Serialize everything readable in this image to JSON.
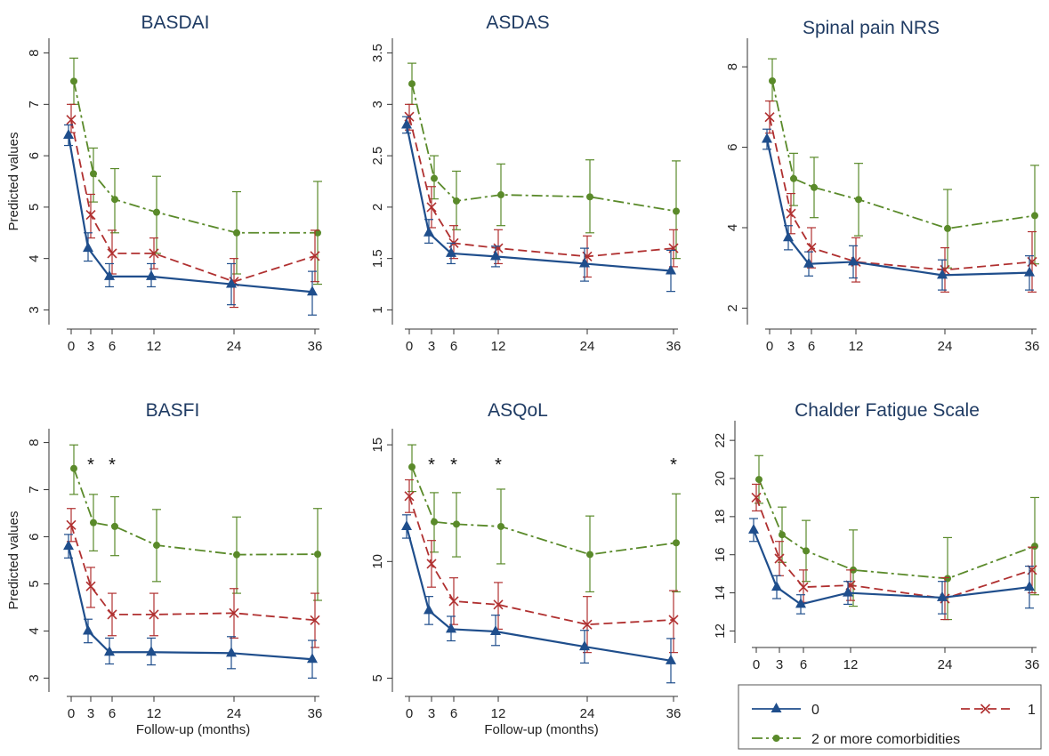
{
  "colors": {
    "series0": "#1f4e8c",
    "series1": "#b03030",
    "series2": "#5a8a2a",
    "axis": "#333333",
    "title": "#1f3b63"
  },
  "legend": {
    "placement": "bottom-right",
    "labels": [
      "0",
      "1",
      "2 or more comorbidities"
    ]
  },
  "chart_data": [
    {
      "type": "line",
      "title": "BASDAI",
      "ylabel": "Predicted values",
      "xlabel": "",
      "x": [
        0,
        3,
        6,
        12,
        24,
        36
      ],
      "ylim": [
        2.8,
        8.2
      ],
      "yticks": [
        3,
        4,
        5,
        6,
        7,
        8
      ],
      "stars": [],
      "series": [
        {
          "name": "0",
          "values": [
            6.4,
            4.2,
            3.65,
            3.65,
            3.5,
            3.35
          ],
          "lo": [
            6.2,
            3.95,
            3.45,
            3.45,
            3.1,
            2.9
          ],
          "hi": [
            6.6,
            4.5,
            3.9,
            3.9,
            3.9,
            3.75
          ]
        },
        {
          "name": "1",
          "values": [
            6.7,
            4.85,
            4.1,
            4.1,
            3.55,
            4.05
          ],
          "lo": [
            6.45,
            4.4,
            3.7,
            3.8,
            3.05,
            3.55
          ],
          "hi": [
            7.0,
            5.25,
            4.55,
            4.4,
            4.0,
            4.55
          ]
        },
        {
          "name": "2 or more comorbidities",
          "values": [
            7.45,
            5.65,
            5.15,
            4.9,
            4.5,
            4.5
          ],
          "lo": [
            7.0,
            5.1,
            4.5,
            4.1,
            3.7,
            3.5
          ],
          "hi": [
            7.9,
            6.15,
            5.75,
            5.6,
            5.3,
            5.5
          ]
        }
      ]
    },
    {
      "type": "line",
      "title": "ASDAS",
      "ylabel": "",
      "xlabel": "",
      "x": [
        0,
        3,
        6,
        12,
        24,
        36
      ],
      "ylim": [
        0.9,
        3.6
      ],
      "yticks": [
        1,
        1.5,
        2,
        2.5,
        3,
        3.5
      ],
      "stars": [],
      "series": [
        {
          "name": "0",
          "values": [
            2.8,
            1.75,
            1.55,
            1.52,
            1.45,
            1.38
          ],
          "lo": [
            2.72,
            1.65,
            1.45,
            1.42,
            1.28,
            1.18
          ],
          "hi": [
            2.88,
            1.88,
            1.65,
            1.62,
            1.6,
            1.58
          ]
        },
        {
          "name": "1",
          "values": [
            2.88,
            2.0,
            1.65,
            1.6,
            1.52,
            1.6
          ],
          "lo": [
            2.75,
            1.8,
            1.5,
            1.45,
            1.32,
            1.42
          ],
          "hi": [
            3.0,
            2.2,
            1.82,
            1.78,
            1.72,
            1.78
          ]
        },
        {
          "name": "2 or more comorbidities",
          "values": [
            3.2,
            2.28,
            2.06,
            2.12,
            2.1,
            1.96
          ],
          "lo": [
            3.0,
            2.08,
            1.78,
            1.82,
            1.75,
            1.5
          ],
          "hi": [
            3.4,
            2.5,
            2.35,
            2.42,
            2.46,
            2.45
          ]
        }
      ]
    },
    {
      "type": "line",
      "title": "Spinal pain NRS",
      "ylabel": "",
      "xlabel": "",
      "x": [
        0,
        3,
        6,
        12,
        24,
        36
      ],
      "ylim": [
        1.7,
        8.6
      ],
      "yticks": [
        2,
        4,
        6,
        8
      ],
      "stars": [],
      "series": [
        {
          "name": "0",
          "values": [
            6.2,
            3.75,
            3.1,
            3.15,
            2.82,
            2.88
          ],
          "lo": [
            5.95,
            3.45,
            2.8,
            2.75,
            2.45,
            2.45
          ],
          "hi": [
            6.45,
            4.05,
            3.4,
            3.55,
            3.2,
            3.3
          ]
        },
        {
          "name": "1",
          "values": [
            6.75,
            4.35,
            3.5,
            3.15,
            2.95,
            3.15
          ],
          "lo": [
            6.35,
            3.85,
            3.0,
            2.65,
            2.4,
            2.4
          ],
          "hi": [
            7.15,
            4.85,
            4.0,
            3.75,
            3.5,
            3.9
          ]
        },
        {
          "name": "2 or more comorbidities",
          "values": [
            7.65,
            5.22,
            5.0,
            4.7,
            3.98,
            4.3
          ],
          "lo": [
            7.15,
            4.55,
            4.25,
            3.8,
            3.0,
            3.1
          ],
          "hi": [
            8.2,
            5.85,
            5.75,
            5.6,
            4.95,
            5.55
          ]
        }
      ]
    },
    {
      "type": "line",
      "title": "BASFI",
      "ylabel": "Predicted values",
      "xlabel": "Follow-up (months)",
      "x": [
        0,
        3,
        6,
        12,
        24,
        36
      ],
      "ylim": [
        2.8,
        8.2
      ],
      "yticks": [
        3,
        4,
        5,
        6,
        7,
        8
      ],
      "stars": [
        3,
        6
      ],
      "series": [
        {
          "name": "0",
          "values": [
            5.8,
            4.0,
            3.55,
            3.55,
            3.53,
            3.4
          ],
          "lo": [
            5.55,
            3.75,
            3.3,
            3.28,
            3.2,
            3.0
          ],
          "hi": [
            6.05,
            4.25,
            3.85,
            3.85,
            3.88,
            3.8
          ]
        },
        {
          "name": "1",
          "values": [
            6.25,
            4.95,
            4.35,
            4.35,
            4.38,
            4.23
          ],
          "lo": [
            5.9,
            4.5,
            3.9,
            3.9,
            3.85,
            3.65
          ],
          "hi": [
            6.6,
            5.35,
            4.8,
            4.8,
            4.9,
            4.8
          ]
        },
        {
          "name": "2 or more comorbidities",
          "values": [
            7.45,
            6.3,
            6.22,
            5.82,
            5.62,
            5.63
          ],
          "lo": [
            6.9,
            5.7,
            5.6,
            5.05,
            4.8,
            4.65
          ],
          "hi": [
            7.95,
            6.9,
            6.85,
            6.58,
            6.42,
            6.6
          ]
        }
      ]
    },
    {
      "type": "line",
      "title": "ASQoL",
      "ylabel": "",
      "xlabel": "Follow-up (months)",
      "x": [
        0,
        3,
        6,
        12,
        24,
        36
      ],
      "ylim": [
        4.6,
        15.5
      ],
      "yticks": [
        5,
        10,
        15
      ],
      "stars": [
        3,
        6,
        12,
        36
      ],
      "series": [
        {
          "name": "0",
          "values": [
            11.5,
            7.9,
            7.1,
            7.0,
            6.35,
            5.75
          ],
          "lo": [
            11.0,
            7.3,
            6.6,
            6.4,
            5.65,
            4.8
          ],
          "hi": [
            12.0,
            8.5,
            7.65,
            7.7,
            7.05,
            6.7
          ]
        },
        {
          "name": "1",
          "values": [
            12.8,
            9.9,
            8.3,
            8.15,
            7.3,
            7.5
          ],
          "lo": [
            12.1,
            8.9,
            7.3,
            7.1,
            6.1,
            6.1
          ],
          "hi": [
            13.5,
            10.9,
            9.3,
            9.1,
            8.5,
            8.75
          ]
        },
        {
          "name": "2 or more comorbidities",
          "values": [
            14.05,
            11.7,
            11.6,
            11.5,
            10.3,
            10.8
          ],
          "lo": [
            13.0,
            10.4,
            10.2,
            9.9,
            8.7,
            8.7
          ],
          "hi": [
            15.0,
            12.95,
            12.95,
            13.1,
            11.95,
            12.9
          ]
        }
      ]
    },
    {
      "type": "line",
      "title": "Chalder Fatigue Scale",
      "ylabel": "",
      "xlabel": "",
      "x": [
        0,
        3,
        6,
        12,
        24,
        36
      ],
      "ylim": [
        11.6,
        22.8
      ],
      "yticks": [
        12,
        14,
        16,
        18,
        20,
        22
      ],
      "stars": [],
      "series": [
        {
          "name": "0",
          "values": [
            17.3,
            14.3,
            13.4,
            14.0,
            13.75,
            14.3
          ],
          "lo": [
            16.7,
            13.7,
            12.9,
            13.4,
            12.9,
            13.2
          ],
          "hi": [
            17.9,
            14.9,
            13.9,
            14.6,
            14.6,
            15.4
          ]
        },
        {
          "name": "1",
          "values": [
            19.0,
            15.8,
            14.3,
            14.4,
            13.7,
            15.2
          ],
          "lo": [
            18.3,
            14.9,
            13.5,
            13.6,
            12.6,
            14.0
          ],
          "hi": [
            19.7,
            16.7,
            15.2,
            15.2,
            14.8,
            16.4
          ]
        },
        {
          "name": "2 or more comorbidities",
          "values": [
            19.95,
            17.05,
            16.2,
            15.2,
            14.75,
            16.45
          ],
          "lo": [
            18.7,
            15.6,
            14.6,
            13.3,
            12.6,
            13.9
          ],
          "hi": [
            21.2,
            18.5,
            17.8,
            17.3,
            16.9,
            19.0
          ]
        }
      ]
    }
  ]
}
